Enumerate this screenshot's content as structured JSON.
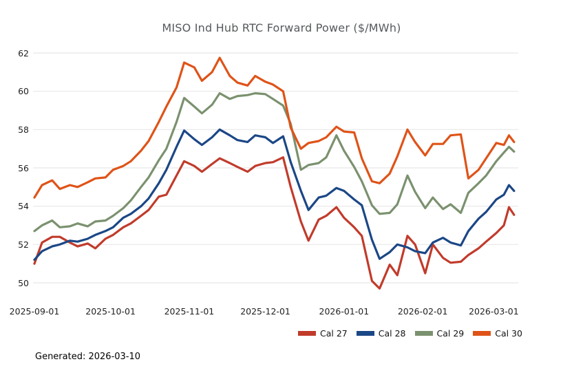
{
  "chart": {
    "title": "MISO Ind Hub RTC Forward Power ($/MWh)",
    "generated_caption": "Generated: 2026-03-10"
  },
  "chart_data": {
    "type": "line",
    "title": "MISO Ind Hub RTC Forward Power ($/MWh)",
    "xlabel": "",
    "ylabel": "",
    "grid": "horizontal",
    "gridline_color": "#e8e8e8",
    "legend_position": "bottom-right",
    "y_ticks": [
      50,
      52,
      54,
      56,
      58,
      60,
      62
    ],
    "ylim": [
      49.2,
      62.4
    ],
    "x_ticks": [
      "2025-09-01",
      "2025-10-01",
      "2025-11-01",
      "2025-12-01",
      "2026-01-01",
      "2026-02-01",
      "2026-03-01"
    ],
    "x": [
      "2025-09-01",
      "2025-09-04",
      "2025-09-08",
      "2025-09-11",
      "2025-09-15",
      "2025-09-18",
      "2025-09-22",
      "2025-09-25",
      "2025-09-29",
      "2025-10-02",
      "2025-10-06",
      "2025-10-09",
      "2025-10-13",
      "2025-10-16",
      "2025-10-20",
      "2025-10-23",
      "2025-10-27",
      "2025-10-30",
      "2025-11-03",
      "2025-11-06",
      "2025-11-10",
      "2025-11-13",
      "2025-11-17",
      "2025-11-20",
      "2025-11-24",
      "2025-11-27",
      "2025-12-01",
      "2025-12-04",
      "2025-12-08",
      "2025-12-11",
      "2025-12-15",
      "2025-12-18",
      "2025-12-22",
      "2025-12-25",
      "2025-12-29",
      "2026-01-01",
      "2026-01-05",
      "2026-01-08",
      "2026-01-12",
      "2026-01-15",
      "2026-01-19",
      "2026-01-22",
      "2026-01-26",
      "2026-01-29",
      "2026-02-02",
      "2026-02-05",
      "2026-02-09",
      "2026-02-12",
      "2026-02-16",
      "2026-02-19",
      "2026-02-23",
      "2026-02-26",
      "2026-03-02",
      "2026-03-05",
      "2026-03-07",
      "2026-03-09"
    ],
    "series": [
      {
        "name": "Cal 27",
        "color": "#c13b2b",
        "values": [
          51.0,
          52.1,
          52.4,
          52.4,
          52.1,
          51.9,
          52.05,
          51.8,
          52.3,
          52.5,
          52.9,
          53.1,
          53.5,
          53.8,
          54.5,
          54.6,
          55.6,
          56.35,
          56.1,
          55.8,
          56.2,
          56.5,
          56.25,
          56.05,
          55.8,
          56.1,
          56.25,
          56.3,
          56.55,
          55.0,
          53.2,
          52.2,
          53.3,
          53.5,
          53.95,
          53.4,
          52.9,
          52.45,
          50.1,
          49.7,
          50.95,
          50.4,
          52.45,
          52.0,
          50.5,
          52.0,
          51.3,
          51.05,
          51.1,
          51.45,
          51.8,
          52.15,
          52.6,
          53.0,
          53.95,
          53.55
        ]
      },
      {
        "name": "Cal 28",
        "color": "#1b4786",
        "values": [
          51.2,
          51.65,
          51.9,
          52.0,
          52.2,
          52.15,
          52.3,
          52.5,
          52.7,
          52.9,
          53.4,
          53.6,
          54.0,
          54.4,
          55.2,
          55.9,
          57.1,
          57.95,
          57.5,
          57.2,
          57.6,
          58.0,
          57.7,
          57.45,
          57.35,
          57.7,
          57.6,
          57.3,
          57.65,
          56.3,
          54.8,
          53.8,
          54.45,
          54.55,
          54.95,
          54.8,
          54.35,
          54.05,
          52.25,
          51.25,
          51.6,
          52.0,
          51.85,
          51.65,
          51.55,
          52.1,
          52.35,
          52.1,
          51.95,
          52.7,
          53.35,
          53.7,
          54.35,
          54.6,
          55.1,
          54.8
        ]
      },
      {
        "name": "Cal 29",
        "color": "#7b916f",
        "values": [
          52.7,
          53.0,
          53.25,
          52.9,
          52.95,
          53.1,
          52.95,
          53.2,
          53.25,
          53.5,
          53.9,
          54.3,
          55.0,
          55.5,
          56.4,
          57.0,
          58.4,
          59.65,
          59.2,
          58.85,
          59.3,
          59.9,
          59.6,
          59.75,
          59.8,
          59.9,
          59.85,
          59.6,
          59.25,
          58.3,
          55.9,
          56.15,
          56.25,
          56.55,
          57.7,
          56.9,
          56.05,
          55.3,
          54.05,
          53.6,
          53.65,
          54.1,
          55.6,
          54.75,
          53.9,
          54.45,
          53.85,
          54.1,
          53.65,
          54.7,
          55.2,
          55.6,
          56.35,
          56.8,
          57.1,
          56.85
        ]
      },
      {
        "name": "Cal 30",
        "color": "#df5318",
        "values": [
          54.45,
          55.1,
          55.35,
          54.9,
          55.1,
          55.0,
          55.25,
          55.45,
          55.5,
          55.9,
          56.1,
          56.35,
          56.9,
          57.4,
          58.4,
          59.2,
          60.2,
          61.5,
          61.25,
          60.55,
          61.0,
          61.75,
          60.8,
          60.45,
          60.3,
          60.8,
          60.5,
          60.35,
          60.0,
          58.1,
          57.0,
          57.3,
          57.4,
          57.6,
          58.15,
          57.9,
          57.85,
          56.5,
          55.3,
          55.2,
          55.7,
          56.6,
          58.0,
          57.35,
          56.65,
          57.25,
          57.25,
          57.7,
          57.75,
          55.45,
          55.9,
          56.5,
          57.3,
          57.2,
          57.7,
          57.35
        ]
      }
    ]
  }
}
